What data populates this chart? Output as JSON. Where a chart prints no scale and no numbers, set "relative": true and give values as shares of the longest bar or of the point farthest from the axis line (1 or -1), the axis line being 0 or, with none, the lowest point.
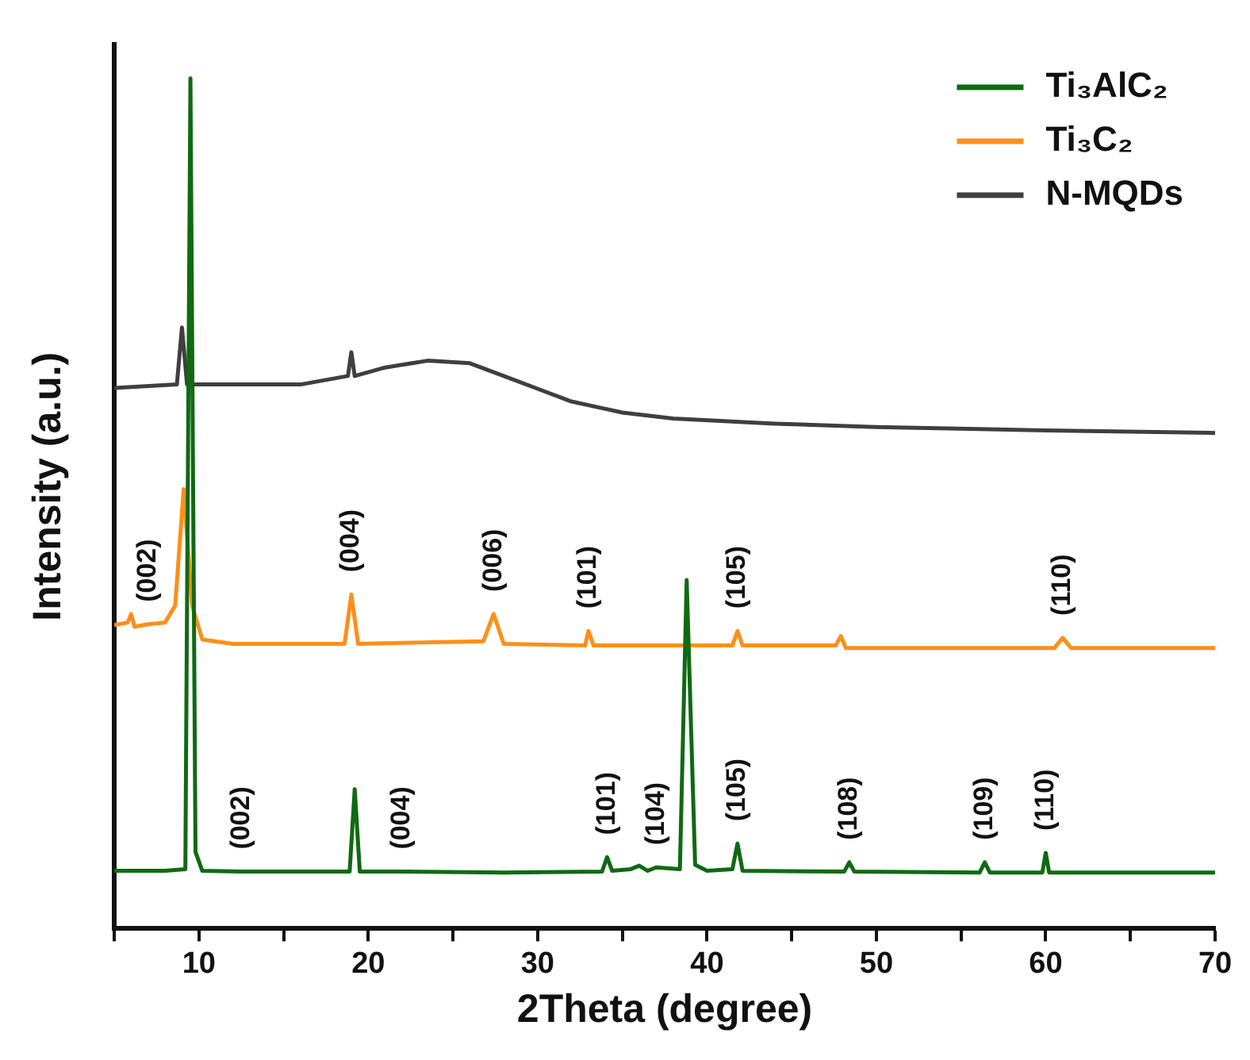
{
  "chart_data": {
    "type": "line",
    "relative": true,
    "xlabel": "2Theta (degree)",
    "ylabel": "Intensity (a.u.)",
    "xlim": [
      5,
      70
    ],
    "xticks": [
      {
        "value": 5,
        "label": null
      },
      10,
      {
        "value": 15,
        "label": null
      },
      20,
      {
        "value": 25,
        "label": null
      },
      30,
      {
        "value": 35,
        "label": null
      },
      40,
      {
        "value": 45,
        "label": null
      },
      50,
      {
        "value": 55,
        "label": null
      },
      60,
      {
        "value": 65,
        "label": null
      },
      70
    ],
    "grid": false,
    "legend": "top right",
    "marker": "none",
    "line_style": "solid",
    "series": [
      {
        "name": "Ti₃AlC₂",
        "color": "#0f6a12",
        "x": [
          5,
          8,
          9.2,
          9.5,
          9.8,
          10.2,
          12.5,
          15,
          18.9,
          19.2,
          19.5,
          22,
          28,
          33.8,
          34.1,
          34.4,
          35.5,
          36,
          36.5,
          37,
          38.4,
          38.8,
          39.3,
          40,
          41.5,
          41.8,
          42.1,
          48.1,
          48.4,
          48.7,
          56.1,
          56.4,
          56.7,
          59.8,
          60,
          60.2,
          70
        ],
        "values": [
          0.068,
          0.068,
          0.07,
          1.0,
          0.09,
          0.068,
          0.067,
          0.067,
          0.067,
          0.164,
          0.067,
          0.067,
          0.066,
          0.067,
          0.084,
          0.068,
          0.07,
          0.074,
          0.068,
          0.072,
          0.07,
          0.41,
          0.075,
          0.068,
          0.07,
          0.1,
          0.068,
          0.067,
          0.078,
          0.067,
          0.066,
          0.078,
          0.066,
          0.066,
          0.089,
          0.066,
          0.066
        ]
      },
      {
        "name": "Ti₃C₂",
        "color": "#ff8f1a",
        "x": [
          5,
          5.8,
          6,
          6.2,
          7,
          8,
          8.6,
          9.1,
          9.6,
          10.2,
          12,
          18.6,
          19,
          19.4,
          26.8,
          27.4,
          28,
          32.8,
          33,
          33.3,
          41.5,
          41.8,
          42.1,
          47.6,
          47.9,
          48.2,
          60.5,
          61,
          61.5,
          70
        ],
        "values": [
          0.357,
          0.36,
          0.37,
          0.355,
          0.358,
          0.36,
          0.38,
          0.517,
          0.38,
          0.34,
          0.335,
          0.335,
          0.393,
          0.335,
          0.338,
          0.37,
          0.335,
          0.333,
          0.35,
          0.333,
          0.333,
          0.35,
          0.333,
          0.333,
          0.344,
          0.33,
          0.33,
          0.342,
          0.33,
          0.33
        ]
      },
      {
        "name": "N-MQDs",
        "color": "#3f3f3f",
        "x": [
          5,
          8.7,
          9,
          9.3,
          12,
          16,
          18.8,
          19,
          19.2,
          21,
          23.5,
          26,
          28,
          30,
          32,
          35,
          38,
          44,
          50,
          60,
          70
        ],
        "values": [
          0.636,
          0.64,
          0.707,
          0.64,
          0.64,
          0.64,
          0.65,
          0.678,
          0.65,
          0.66,
          0.668,
          0.665,
          0.65,
          0.635,
          0.62,
          0.607,
          0.6,
          0.594,
          0.59,
          0.586,
          0.583
        ]
      }
    ],
    "annotations": [
      {
        "text": "(002)",
        "x": 7,
        "y": 0.358
      },
      {
        "text": "(004)",
        "x": 19,
        "y": 0.393
      },
      {
        "text": "(006)",
        "x": 27.4,
        "y": 0.37
      },
      {
        "text": "(101)",
        "x": 33,
        "y": 0.35
      },
      {
        "text": "(105)",
        "x": 41.8,
        "y": 0.35
      },
      {
        "text": "(110)",
        "x": 61,
        "y": 0.342
      },
      {
        "text": "(002)",
        "x": 12.5,
        "y": 0.067
      },
      {
        "text": "(004)",
        "x": 22,
        "y": 0.067
      },
      {
        "text": "(101)",
        "x": 34.1,
        "y": 0.084
      },
      {
        "text": "(104)",
        "x": 37,
        "y": 0.072
      },
      {
        "text": "(105)",
        "x": 41.8,
        "y": 0.1
      },
      {
        "text": "(108)",
        "x": 48.4,
        "y": 0.078
      },
      {
        "text": "(109)",
        "x": 56.4,
        "y": 0.078
      },
      {
        "text": "(110)",
        "x": 60,
        "y": 0.089
      }
    ]
  }
}
